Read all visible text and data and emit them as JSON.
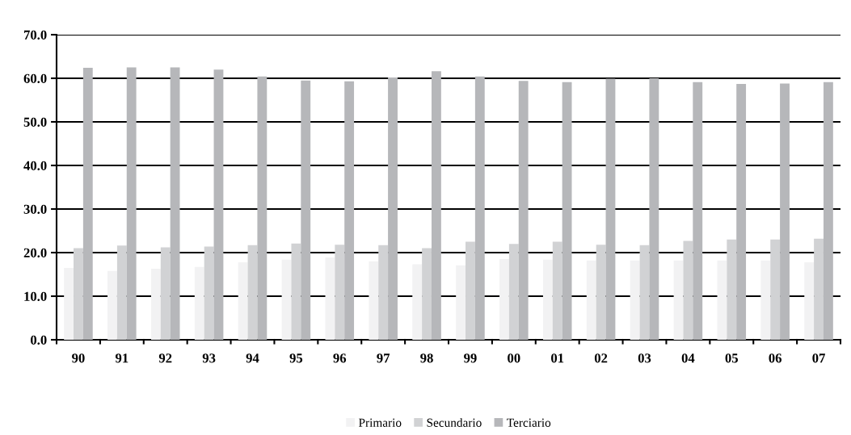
{
  "chart_data": {
    "type": "bar",
    "categories": [
      "90",
      "91",
      "92",
      "93",
      "94",
      "95",
      "96",
      "97",
      "98",
      "99",
      "00",
      "01",
      "02",
      "03",
      "04",
      "05",
      "06",
      "07"
    ],
    "series": [
      {
        "name": "Primario",
        "color": "#f2f2f3",
        "values": [
          16.5,
          15.8,
          16.3,
          16.7,
          17.8,
          18.4,
          18.9,
          18.0,
          17.3,
          17.1,
          18.5,
          18.4,
          18.2,
          18.2,
          18.2,
          18.2,
          18.2,
          17.8
        ]
      },
      {
        "name": "Secundario",
        "color": "#d1d2d4",
        "values": [
          21.0,
          21.6,
          21.2,
          21.4,
          21.7,
          22.1,
          21.8,
          21.7,
          21.0,
          22.5,
          22.0,
          22.5,
          21.8,
          21.7,
          22.7,
          23.0,
          23.0,
          23.2
        ]
      },
      {
        "name": "Terciario",
        "color": "#b6b7ba",
        "values": [
          62.4,
          62.5,
          62.5,
          62.0,
          60.4,
          59.5,
          59.3,
          60.2,
          61.6,
          60.4,
          59.4,
          59.1,
          59.9,
          60.0,
          59.1,
          58.7,
          58.8,
          59.1
        ]
      }
    ],
    "ylim": [
      0,
      70
    ],
    "yticks": [
      {
        "value": 0,
        "label": "0.0"
      },
      {
        "value": 10,
        "label": "10.0"
      },
      {
        "value": 20,
        "label": "20.0"
      },
      {
        "value": 30,
        "label": "30.0"
      },
      {
        "value": 40,
        "label": "40.0"
      },
      {
        "value": 50,
        "label": "50.0"
      },
      {
        "value": 60,
        "label": "60.0"
      },
      {
        "value": 70,
        "label": "70.0"
      }
    ],
    "grid": "y",
    "legend": "bottom"
  }
}
